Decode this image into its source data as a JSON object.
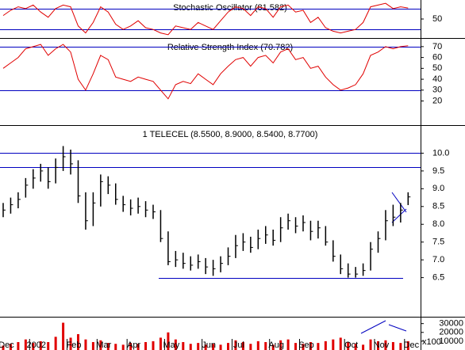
{
  "chart_data": [
    {
      "type": "line",
      "title": "Stochastic Oscillator (81.582)",
      "ylim": [
        0,
        100
      ],
      "yticks": [
        50
      ],
      "levels": [
        80,
        20
      ],
      "level_color": "#0000c0",
      "series": [
        {
          "name": "Stochastic Oscillator",
          "color": "#e00000",
          "values": [
            60,
            75,
            85,
            80,
            90,
            70,
            55,
            80,
            90,
            85,
            30,
            10,
            40,
            85,
            70,
            35,
            20,
            30,
            45,
            25,
            20,
            10,
            5,
            30,
            25,
            20,
            40,
            30,
            20,
            45,
            70,
            85,
            80,
            60,
            85,
            80,
            55,
            85,
            90,
            70,
            75,
            40,
            55,
            25,
            15,
            10,
            15,
            20,
            40,
            85,
            90,
            95,
            80,
            85,
            81.582
          ]
        }
      ]
    },
    {
      "type": "line",
      "title": "Relative Strength Index (70.782)",
      "ylim": [
        0,
        75
      ],
      "yticks": [
        20,
        30,
        40,
        50,
        60,
        70
      ],
      "levels": [
        70,
        30
      ],
      "level_color": "#0000c0",
      "series": [
        {
          "name": "Relative Strength Index",
          "color": "#e00000",
          "values": [
            50,
            55,
            60,
            68,
            70,
            72,
            62,
            68,
            72,
            65,
            40,
            30,
            45,
            62,
            58,
            42,
            40,
            38,
            42,
            40,
            38,
            30,
            22,
            35,
            38,
            36,
            45,
            40,
            35,
            45,
            52,
            58,
            60,
            52,
            60,
            62,
            55,
            65,
            68,
            58,
            60,
            50,
            52,
            42,
            35,
            30,
            32,
            35,
            45,
            62,
            65,
            70,
            68,
            70,
            70.782
          ]
        }
      ]
    },
    {
      "type": "ohlc",
      "title": "1 TELECEL (8.5500, 8.9000, 8.5400, 8.7700)",
      "ylim": [
        5.4,
        10.7
      ],
      "yticks": [
        6.5,
        {
          "value": 7,
          "label": "7.0"
        },
        7.5,
        {
          "value": 8,
          "label": "8.0"
        },
        8.5,
        {
          "value": 9,
          "label": "9.0"
        },
        9.5,
        {
          "value": 10,
          "label": "10.0"
        }
      ],
      "levels": [
        10,
        9.6
      ],
      "support": 6.5,
      "level_color": "#0000c0",
      "color": "#000000",
      "highs": [
        8.6,
        8.75,
        8.9,
        9.3,
        9.55,
        9.7,
        9.6,
        9.85,
        10.2,
        10.1,
        9.8,
        8.9,
        8.9,
        9.4,
        9.35,
        9.15,
        8.8,
        8.7,
        8.75,
        8.65,
        8.55,
        8.4,
        7.8,
        7.25,
        7.2,
        7.1,
        7.15,
        7.05,
        7.0,
        7.1,
        7.35,
        7.7,
        7.75,
        7.65,
        7.85,
        7.95,
        7.85,
        8.2,
        8.3,
        8.2,
        8.25,
        8.1,
        8.1,
        7.95,
        7.55,
        7.15,
        6.9,
        6.8,
        6.9,
        7.5,
        7.8,
        8.4,
        8.55,
        8.6,
        8.9
      ],
      "lows": [
        8.2,
        8.3,
        8.45,
        8.75,
        9.0,
        9.2,
        9.0,
        9.15,
        9.5,
        9.4,
        8.6,
        7.85,
        7.95,
        8.5,
        8.85,
        8.55,
        8.35,
        8.25,
        8.3,
        8.2,
        8.15,
        7.5,
        6.85,
        6.8,
        6.75,
        6.7,
        6.75,
        6.6,
        6.55,
        6.65,
        6.85,
        7.05,
        7.25,
        7.2,
        7.3,
        7.45,
        7.4,
        7.5,
        7.85,
        7.75,
        7.8,
        7.55,
        7.6,
        7.4,
        6.95,
        6.6,
        6.5,
        6.5,
        6.55,
        6.7,
        7.2,
        7.55,
        7.95,
        8.05,
        8.54
      ],
      "closes": [
        8.4,
        8.55,
        8.7,
        9.1,
        9.3,
        9.5,
        9.2,
        9.6,
        9.9,
        9.7,
        8.8,
        8.1,
        8.6,
        9.2,
        9.1,
        8.7,
        8.55,
        8.45,
        8.5,
        8.4,
        8.35,
        7.6,
        6.95,
        7.0,
        6.9,
        6.85,
        6.95,
        6.8,
        6.75,
        6.9,
        7.1,
        7.4,
        7.5,
        7.35,
        7.6,
        7.7,
        7.55,
        7.9,
        8.1,
        7.95,
        8.05,
        7.8,
        7.9,
        7.5,
        7.1,
        6.75,
        6.6,
        6.6,
        6.7,
        7.3,
        7.6,
        8.1,
        8.2,
        8.4,
        8.77
      ]
    },
    {
      "type": "bar",
      "ylim": [
        0,
        36000
      ],
      "yticks": [
        10000,
        20000,
        30000
      ],
      "unit_label": "x100",
      "color": "#e00000",
      "categories": [
        "Dec",
        null,
        null,
        null,
        "2002",
        null,
        null,
        null,
        null,
        "Feb",
        null,
        null,
        null,
        "Mar",
        null,
        null,
        null,
        "Apr",
        null,
        null,
        null,
        null,
        "May",
        null,
        null,
        null,
        null,
        "Jun",
        null,
        null,
        null,
        "Jul",
        null,
        null,
        null,
        null,
        "Aug",
        null,
        null,
        null,
        "Sep",
        null,
        null,
        null,
        null,
        null,
        "Oct",
        null,
        null,
        null,
        "Nov",
        null,
        null,
        null,
        "Dec"
      ],
      "values": [
        5000,
        7000,
        9000,
        12000,
        8000,
        10000,
        9000,
        15000,
        31000,
        14000,
        18000,
        12000,
        9000,
        11000,
        8000,
        7000,
        6000,
        8000,
        7000,
        9000,
        10000,
        14000,
        20000,
        12000,
        9000,
        7000,
        8000,
        6000,
        7000,
        6000,
        8000,
        11000,
        9000,
        7000,
        10000,
        9000,
        6000,
        11000,
        12000,
        8000,
        7000,
        9000,
        8000,
        10000,
        12000,
        14000,
        9000,
        7000,
        6000,
        12000,
        10000,
        11000,
        9000,
        8000,
        10000
      ]
    }
  ]
}
